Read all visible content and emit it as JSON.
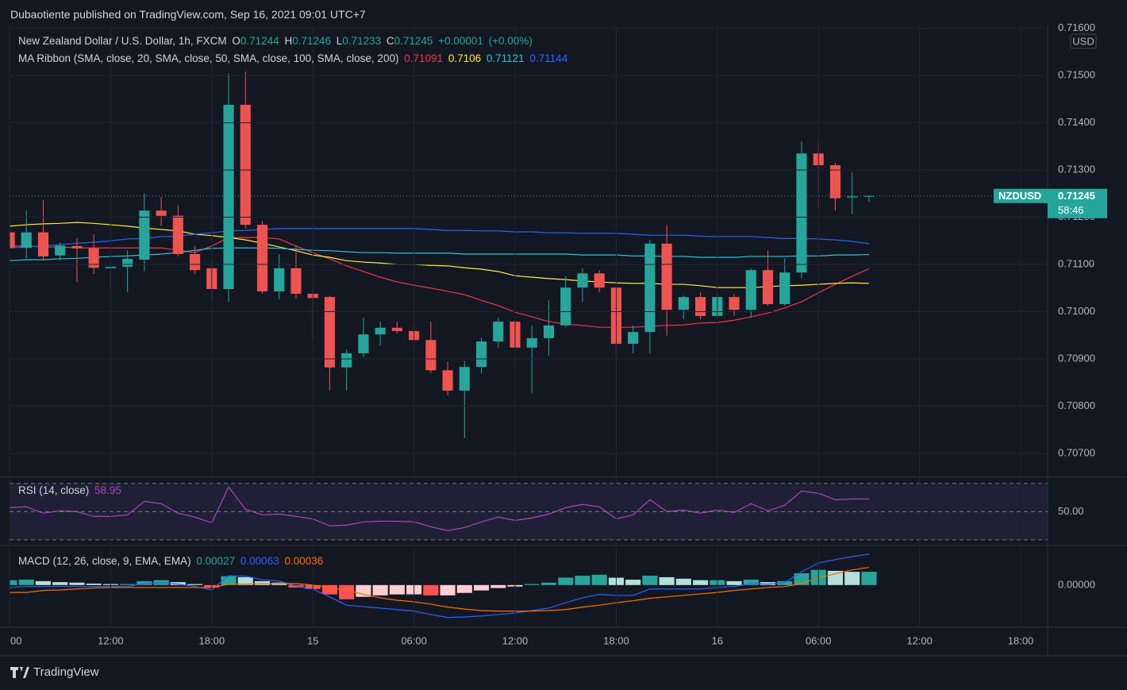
{
  "header": {
    "text": "Dubaotiente published on TradingView.com, Sep 16, 2021 09:01 UTC+7"
  },
  "footer": {
    "brand": "TradingView"
  },
  "chart_data": [
    {
      "type": "candlestick",
      "title": "New Zealand Dollar / U.S. Dollar, 1h, FXCM",
      "ohlc_labels": [
        "O",
        "H",
        "L",
        "C"
      ],
      "change": {
        "value": 1e-05,
        "label": "+0.00001"
      },
      "change_percent": "(+0.00%)",
      "open": [
        0.71168,
        0.71135,
        0.71168,
        0.71119,
        0.71139,
        0.71134,
        0.71092,
        0.71095,
        0.7111,
        0.71214,
        0.71203,
        0.71122,
        0.71092,
        0.71048,
        0.71438,
        0.71184,
        0.71043,
        0.71092,
        0.71038,
        0.71031,
        0.70882,
        0.70912,
        0.70952,
        0.70966,
        0.70959,
        0.7094,
        0.70876,
        0.70833,
        0.70883,
        0.70937,
        0.70979,
        0.70924,
        0.70944,
        0.70971,
        0.71051,
        0.71081,
        0.71051,
        0.70932,
        0.70957,
        0.71144,
        0.71004,
        0.71031,
        0.70991,
        0.71031,
        0.71004,
        0.71088,
        0.71016,
        0.71083,
        0.71335,
        0.7131,
        0.71242,
        0.71244
      ],
      "high": [
        0.71181,
        0.71214,
        0.71236,
        0.71147,
        0.71155,
        0.71164,
        0.71105,
        0.7113,
        0.71251,
        0.71243,
        0.71226,
        0.71139,
        0.71113,
        0.71505,
        0.71508,
        0.71192,
        0.71122,
        0.71139,
        0.7105,
        0.71034,
        0.7092,
        0.70987,
        0.70979,
        0.70979,
        0.70979,
        0.70979,
        0.70895,
        0.70895,
        0.70945,
        0.70987,
        0.70987,
        0.70971,
        0.71024,
        0.71075,
        0.71092,
        0.71088,
        0.71054,
        0.70971,
        0.71152,
        0.71184,
        0.71034,
        0.71041,
        0.71041,
        0.71038,
        0.71092,
        0.7113,
        0.71113,
        0.71361,
        0.71357,
        0.71315,
        0.71295,
        0.71246
      ],
      "low": [
        0.71122,
        0.71113,
        0.71108,
        0.71108,
        0.71063,
        0.7108,
        0.7105,
        0.71041,
        0.71085,
        0.71181,
        0.71117,
        0.7108,
        0.71021,
        0.71021,
        0.71176,
        0.71038,
        0.71026,
        0.71029,
        0.70945,
        0.70833,
        0.70833,
        0.70903,
        0.70929,
        0.70954,
        0.70934,
        0.7087,
        0.70823,
        0.70732,
        0.7087,
        0.70924,
        0.70865,
        0.70828,
        0.70907,
        0.70967,
        0.71021,
        0.71041,
        0.70907,
        0.70912,
        0.70912,
        0.70949,
        0.70984,
        0.70984,
        0.70987,
        0.70991,
        0.70987,
        0.71013,
        0.71013,
        0.71071,
        0.71219,
        0.71214,
        0.71206,
        0.71233
      ],
      "close": [
        0.71135,
        0.71168,
        0.71117,
        0.7114,
        0.71134,
        0.71093,
        0.71095,
        0.71112,
        0.71214,
        0.71203,
        0.71122,
        0.71088,
        0.71048,
        0.71438,
        0.71184,
        0.71043,
        0.71092,
        0.71038,
        0.71029,
        0.70882,
        0.70912,
        0.70952,
        0.70966,
        0.70959,
        0.7094,
        0.70876,
        0.70833,
        0.70883,
        0.70937,
        0.70979,
        0.70924,
        0.70944,
        0.70971,
        0.71051,
        0.71081,
        0.71051,
        0.70932,
        0.70957,
        0.71144,
        0.71004,
        0.71031,
        0.70991,
        0.71031,
        0.71004,
        0.71088,
        0.71016,
        0.71083,
        0.71335,
        0.7131,
        0.7124,
        0.71244,
        0.71245
      ],
      "up_color": "#26a69a",
      "down_color": "#ef5350",
      "indicator": "MA Ribbon (SMA, close, 20, SMA, close, 50, SMA, close, 100, SMA, close, 200)",
      "series": [
        {
          "color": "#f23645",
          "values": [
            0.71139,
            0.71139,
            0.71137,
            0.71137,
            0.71135,
            0.71135,
            0.71135,
            0.71135,
            0.71135,
            0.71135,
            0.7113,
            0.71125,
            0.71139,
            0.71157,
            0.71157,
            0.71157,
            0.71154,
            0.71139,
            0.71125,
            0.71112,
            0.71097,
            0.71085,
            0.71073,
            0.71063,
            0.71056,
            0.7105,
            0.71043,
            0.71036,
            0.71024,
            0.71013,
            0.70999,
            0.70989,
            0.70979,
            0.70974,
            0.70971,
            0.70967,
            0.70967,
            0.70967,
            0.70969,
            0.70971,
            0.70972,
            0.70976,
            0.70977,
            0.70982,
            0.70989,
            0.70997,
            0.71008,
            0.71021,
            0.7104,
            0.71058,
            0.71075,
            0.71091
          ]
        },
        {
          "color": "#ffeb3b",
          "values": [
            0.71181,
            0.71184,
            0.71186,
            0.71187,
            0.71189,
            0.71187,
            0.71184,
            0.71181,
            0.71177,
            0.71174,
            0.71171,
            0.71164,
            0.71161,
            0.71157,
            0.71152,
            0.71145,
            0.71137,
            0.71129,
            0.7112,
            0.71115,
            0.71108,
            0.71105,
            0.71103,
            0.711,
            0.711,
            0.71098,
            0.71097,
            0.71093,
            0.7109,
            0.71085,
            0.71076,
            0.71073,
            0.7107,
            0.71068,
            0.71065,
            0.71063,
            0.71061,
            0.7106,
            0.7106,
            0.71058,
            0.71058,
            0.71055,
            0.71051,
            0.71051,
            0.71051,
            0.71053,
            0.71055,
            0.71056,
            0.71058,
            0.7106,
            0.71061,
            0.7106
          ]
        },
        {
          "color": "#26c6da",
          "values": [
            0.71108,
            0.7111,
            0.7111,
            0.71112,
            0.71113,
            0.71115,
            0.71117,
            0.71118,
            0.7112,
            0.71122,
            0.71125,
            0.7113,
            0.71134,
            0.71135,
            0.71135,
            0.71135,
            0.71134,
            0.71132,
            0.7113,
            0.71129,
            0.71127,
            0.71125,
            0.71125,
            0.71124,
            0.71124,
            0.71124,
            0.71124,
            0.71122,
            0.71122,
            0.71122,
            0.71122,
            0.71122,
            0.71122,
            0.71122,
            0.7112,
            0.7112,
            0.7112,
            0.71118,
            0.71118,
            0.71117,
            0.71117,
            0.71115,
            0.71115,
            0.71115,
            0.71117,
            0.71117,
            0.71117,
            0.71118,
            0.71118,
            0.7112,
            0.7112,
            0.71121
          ]
        },
        {
          "color": "#2962ff",
          "values": [
            0.71135,
            0.71137,
            0.71139,
            0.71142,
            0.71145,
            0.71147,
            0.7115,
            0.71154,
            0.71155,
            0.71159,
            0.7116,
            0.71164,
            0.71167,
            0.71171,
            0.71172,
            0.71174,
            0.71176,
            0.71176,
            0.71176,
            0.71176,
            0.71176,
            0.71176,
            0.71176,
            0.71176,
            0.71176,
            0.71174,
            0.71172,
            0.71172,
            0.71171,
            0.71171,
            0.71169,
            0.71169,
            0.71167,
            0.71167,
            0.71166,
            0.71166,
            0.71166,
            0.71164,
            0.71162,
            0.71162,
            0.71162,
            0.7116,
            0.71159,
            0.71159,
            0.71159,
            0.71157,
            0.71155,
            0.71155,
            0.71154,
            0.71152,
            0.71149,
            0.71144
          ]
        }
      ],
      "currency": "USD",
      "symbol": "NZDUSD",
      "countdown": "58:46",
      "xlim": [
        0,
        61.6
      ],
      "xticks": [
        {
          "value": 0,
          "label": "00"
        },
        {
          "value": 6,
          "label": "12:00"
        },
        {
          "value": 12,
          "label": "18:00"
        },
        {
          "value": 18,
          "label": "15"
        },
        {
          "value": 24,
          "label": "06:00"
        },
        {
          "value": 30,
          "label": "12:00"
        },
        {
          "value": 36,
          "label": "18:00"
        },
        {
          "value": 42,
          "label": "16"
        },
        {
          "value": 48,
          "label": "06:00"
        },
        {
          "value": 54,
          "label": "12:00"
        },
        {
          "value": 60,
          "label": "18:00"
        }
      ],
      "ylim": [
        0.7065,
        0.71606
      ],
      "yticks": [
        {
          "value": 0.716,
          "label": "0.71600"
        },
        {
          "value": 0.715,
          "label": "0.71500"
        },
        {
          "value": 0.714,
          "label": "0.71400"
        },
        {
          "value": 0.713,
          "label": "0.71300"
        },
        {
          "value": 0.712,
          "label": "0.71200"
        },
        {
          "value": 0.711,
          "label": "0.71100"
        },
        {
          "value": 0.71,
          "label": "0.71000"
        },
        {
          "value": 0.709,
          "label": "0.70900"
        },
        {
          "value": 0.708,
          "label": "0.70800"
        },
        {
          "value": 0.707,
          "label": "0.70700"
        }
      ],
      "grid": true
    },
    {
      "type": "line",
      "title": "RSI (14, close)",
      "color": "#ab47bc",
      "values": [
        52.8,
        53.4,
        48.9,
        50.6,
        50,
        46.6,
        46.6,
        47.7,
        57.3,
        55.6,
        48.9,
        46.1,
        42.1,
        67.5,
        51.7,
        47.7,
        48.3,
        46.6,
        44.9,
        39.9,
        40.4,
        42.7,
        43.2,
        43.2,
        42.7,
        39.3,
        36.5,
        38.7,
        42.7,
        46.1,
        43.8,
        45.5,
        48.3,
        52.8,
        55.1,
        53.4,
        44.9,
        47.7,
        58.5,
        50,
        51.1,
        48.9,
        51.1,
        49.4,
        55.6,
        50.6,
        54.5,
        64.6,
        63,
        58.5,
        59.0,
        58.95
      ],
      "ylim": [
        26,
        74.4
      ],
      "yticks": [
        {
          "value": 50,
          "label": "50.00"
        }
      ],
      "bands": [
        30,
        70
      ]
    },
    {
      "type": "macd",
      "title": "MACD (12, 26, close, 9, EMA, EMA)",
      "histogram": {
        "colors": [
          "#26a69a",
          "#b2dfdb",
          "#ffcdd2",
          "#ff5252"
        ],
        "values": [
          0.0001,
          0.00011,
          8e-05,
          6e-05,
          5e-05,
          3e-05,
          2e-05,
          2e-05,
          8e-05,
          0.0001,
          6e-05,
          2e-05,
          -5e-05,
          0.00018,
          0.00016,
          8e-05,
          5e-05,
          -5e-05,
          -8e-05,
          -0.00019,
          -0.00029,
          -0.00024,
          -0.00021,
          -0.00019,
          -0.00019,
          -0.00021,
          -0.00021,
          -0.00016,
          -0.00011,
          -6e-05,
          -3e-05,
          2e-05,
          5e-05,
          0.00015,
          0.00019,
          0.00021,
          0.00015,
          0.00011,
          0.00019,
          0.00016,
          0.00013,
          0.0001,
          0.0001,
          8e-05,
          0.00011,
          6e-05,
          8e-05,
          0.00024,
          0.00031,
          0.00029,
          0.00027,
          0.00027
        ]
      },
      "series": [
        {
          "color": "#2962ff",
          "values": [
            -5e-05,
            -3e-05,
            -3e-05,
            -3e-05,
            -3e-05,
            -3e-05,
            -3e-05,
            -3e-05,
            3e-05,
            5e-05,
            2e-05,
            -3e-05,
            -0.0001,
            0.00019,
            0.00018,
            0.00011,
            8e-05,
            -2e-05,
            -8e-05,
            -0.00024,
            -0.00041,
            -0.00044,
            -0.00047,
            -0.0005,
            -0.00053,
            -0.0006,
            -0.00066,
            -0.00065,
            -0.00063,
            -0.0006,
            -0.00057,
            -0.00052,
            -0.00047,
            -0.00036,
            -0.00026,
            -0.00019,
            -0.00021,
            -0.00021,
            -8e-05,
            -8e-05,
            -8e-05,
            -8e-05,
            -5e-05,
            -3e-05,
            3e-05,
            2e-05,
            5e-05,
            0.00027,
            0.00045,
            0.00052,
            0.00058,
            0.00063
          ]
        },
        {
          "color": "#ff6d00",
          "values": [
            -0.00015,
            -0.00015,
            -0.00011,
            -0.0001,
            -8e-05,
            -6e-05,
            -5e-05,
            -5e-05,
            -5e-05,
            -5e-05,
            -5e-05,
            -5e-05,
            -5e-05,
            2e-05,
            2e-05,
            3e-05,
            3e-05,
            3e-05,
            0,
            -5e-05,
            -0.00011,
            -0.00019,
            -0.00026,
            -0.00031,
            -0.00034,
            -0.00039,
            -0.00045,
            -0.00049,
            -0.00052,
            -0.00053,
            -0.00053,
            -0.00053,
            -0.00052,
            -0.0005,
            -0.00045,
            -0.00041,
            -0.00036,
            -0.00032,
            -0.00027,
            -0.00024,
            -0.00021,
            -0.00018,
            -0.00015,
            -0.00011,
            -8e-05,
            -5e-05,
            -3e-05,
            3e-05,
            0.00015,
            0.00023,
            0.00031,
            0.00036
          ]
        }
      ],
      "ylim": [
        -0.00086,
        0.00079
      ],
      "yticks": [
        {
          "value": 0,
          "label": "0.00000"
        }
      ]
    }
  ]
}
